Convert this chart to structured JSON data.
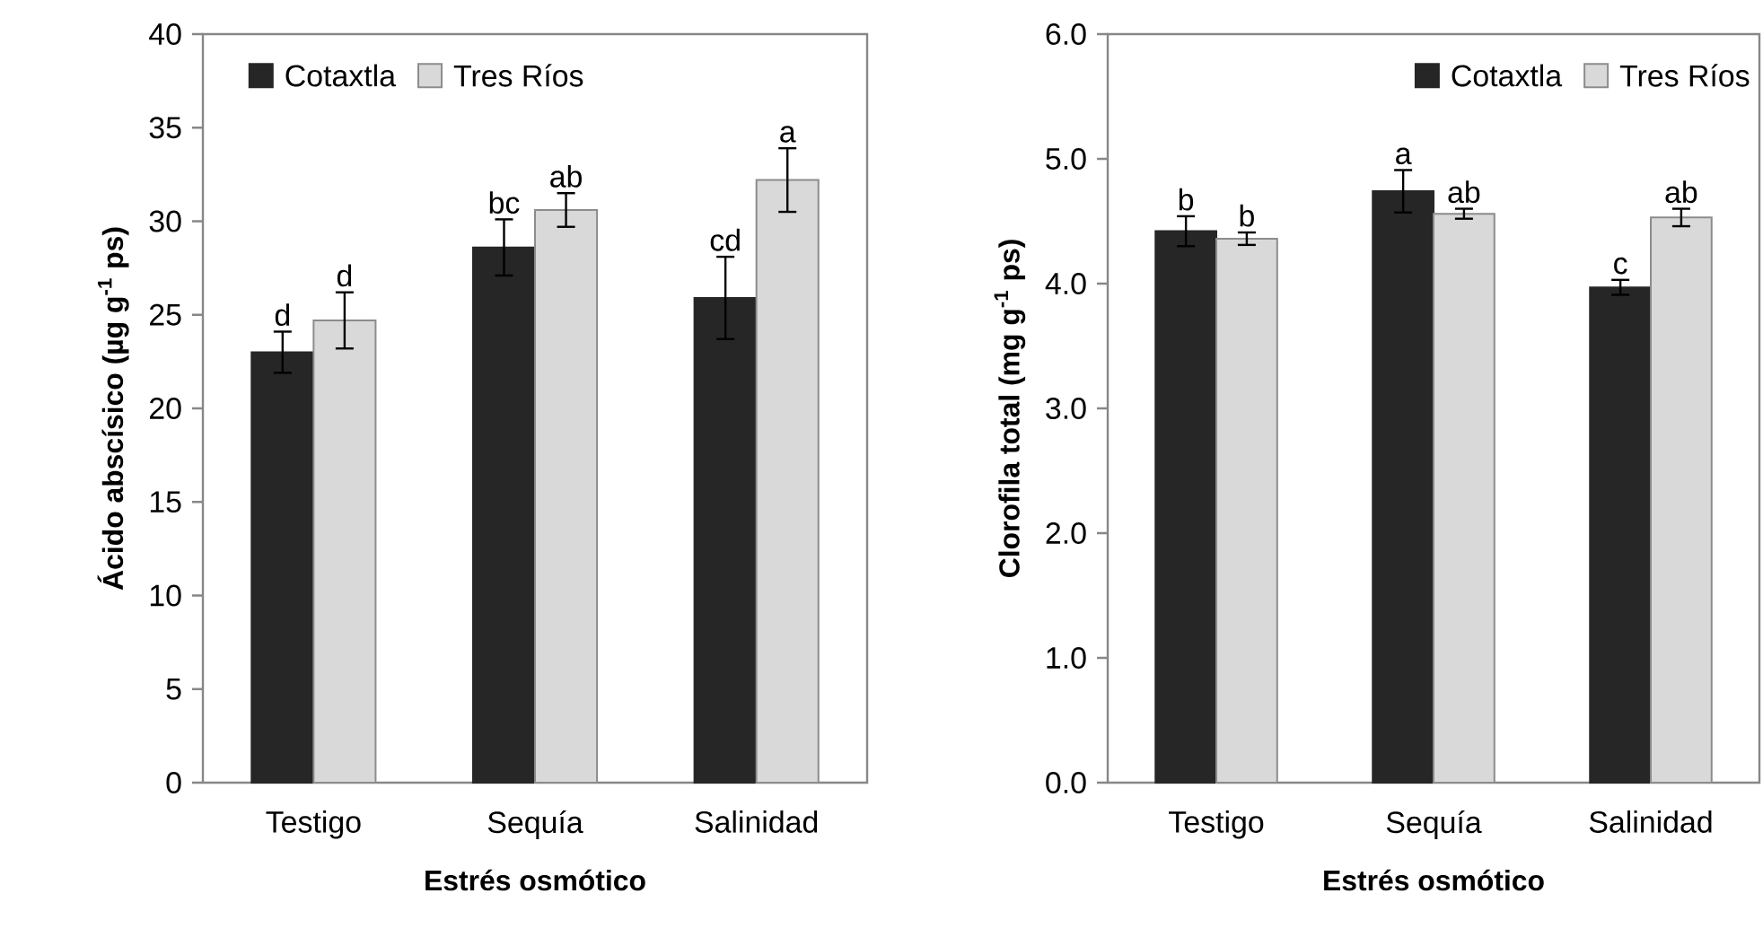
{
  "chart_data": [
    {
      "type": "bar",
      "xlabel": "Estrés osmótico",
      "ylabel": "Ácido abscísico (µg g$^{-1}$ ps)",
      "categories": [
        "Testigo",
        "Sequía",
        "Salinidad"
      ],
      "series": [
        {
          "name": "Cotaxtla",
          "color": "#262626",
          "values": [
            23.0,
            28.6,
            25.9
          ],
          "errors": [
            1.1,
            1.5,
            2.2
          ]
        },
        {
          "name": "Tres Ríos",
          "color": "#d9d9d9",
          "values": [
            24.7,
            30.6,
            32.2
          ],
          "errors": [
            1.5,
            0.9,
            1.7
          ]
        }
      ],
      "ylim": [
        0,
        40
      ],
      "yticks": [
        0,
        5,
        10,
        15,
        20,
        25,
        30,
        35,
        40
      ],
      "legend": "top left",
      "annotations": [
        "d",
        "bc",
        "cd",
        "d",
        "ab",
        "a"
      ]
    },
    {
      "type": "bar",
      "xlabel": "Estrés osmótico",
      "ylabel": "Clorofila total (mg g$^{-1}$ ps)",
      "categories": [
        "Testigo",
        "Sequía",
        "Salinidad"
      ],
      "series": [
        {
          "name": "Cotaxtla",
          "color": "#262626",
          "values": [
            4.42,
            4.74,
            3.97
          ],
          "errors": [
            0.12,
            0.17,
            0.06
          ]
        },
        {
          "name": "Tres Ríos",
          "color": "#d9d9d9",
          "values": [
            4.36,
            4.56,
            4.53
          ],
          "errors": [
            0.05,
            0.04,
            0.07
          ]
        }
      ],
      "ylim": [
        0,
        6
      ],
      "yticks": [
        {
          "value": 0,
          "label": "0.0"
        },
        {
          "value": 1,
          "label": "1.0"
        },
        {
          "value": 2,
          "label": "2.0"
        },
        {
          "value": 3,
          "label": "3.0"
        },
        {
          "value": 4,
          "label": "4.0"
        },
        {
          "value": 5,
          "label": "5.0"
        },
        {
          "value": 6,
          "label": "6.0"
        }
      ],
      "legend": "top right",
      "annotations": [
        "b",
        "a",
        "c",
        "b",
        "ab",
        "ab"
      ]
    }
  ]
}
